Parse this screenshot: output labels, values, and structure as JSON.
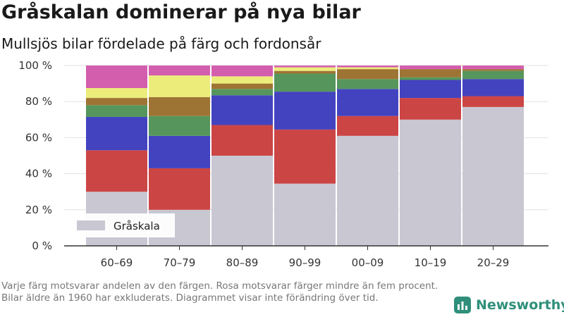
{
  "header": {
    "title": "Gråskalan dominerar på nya bilar",
    "subtitle": "Mullsjös bilar fördelade på färg och fordonsår"
  },
  "footnote": "Varje färg motsvarar andelen av den färgen. Rosa motsvarar färger mindre än fem procent. Bilar äldre än 1960 har exkluderats. Diagrammet visar inte förändring över tid.",
  "brand": {
    "name": "Newsworthy",
    "icon": "newsworthy-logo-icon",
    "color": "#2f8f7a"
  },
  "chart_data": {
    "type": "bar",
    "stacked": true,
    "categories": [
      "60–69",
      "70–79",
      "80–89",
      "90–99",
      "00–09",
      "10–19",
      "20–29"
    ],
    "y_ticks": [
      "0 %",
      "20 %",
      "40 %",
      "60 %",
      "80 %",
      "100 %"
    ],
    "ylim": [
      0,
      100
    ],
    "grid": true,
    "legend_position": "bottom-left",
    "series": [
      {
        "name": "Gråskala",
        "color": "#c8c7d2",
        "values": [
          30,
          20,
          50,
          34.5,
          61,
          70,
          77
        ]
      },
      {
        "color": "#cc4545",
        "values": [
          23,
          23,
          17,
          30,
          11,
          12,
          6
        ]
      },
      {
        "color": "#4343c0",
        "values": [
          18.5,
          18,
          16.5,
          21,
          15,
          10,
          9.5
        ]
      },
      {
        "color": "#56965c",
        "values": [
          6.5,
          11,
          3.5,
          10,
          5.5,
          1.5,
          4.5
        ]
      },
      {
        "color": "#9e7434",
        "values": [
          4,
          10.5,
          3,
          1.5,
          5.5,
          4.5,
          1
        ]
      },
      {
        "color": "#ecec7a",
        "values": [
          5.5,
          12,
          4,
          2,
          1,
          0,
          0
        ]
      },
      {
        "color": "#d35eae",
        "values": [
          12.5,
          5.5,
          6,
          1,
          1,
          2,
          2
        ]
      }
    ]
  }
}
